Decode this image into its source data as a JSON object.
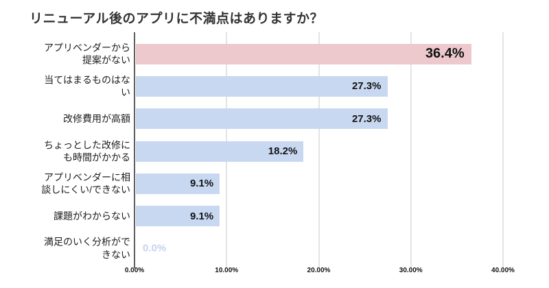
{
  "chart_data": {
    "type": "bar",
    "orientation": "horizontal",
    "title": "リニューアル後のアプリに不満点はありますか？",
    "categories": [
      "アプリベンダーから\n提案がない",
      "当てはまるものはな\nい",
      "改修費用が高額",
      "ちょっとした改修に\nも時間がかかる",
      "アプリベンダーに相\n談しにくい/できない",
      "課題がわからない",
      "満足のいく分析がで\nきない"
    ],
    "values": [
      36.4,
      27.3,
      27.3,
      18.2,
      9.1,
      9.1,
      0.0
    ],
    "value_labels": [
      "36.4%",
      "27.3%",
      "27.3%",
      "18.2%",
      "9.1%",
      "9.1%",
      "0.0%"
    ],
    "highlight_index": 0,
    "xlabel": "",
    "ylabel": "",
    "xlim": [
      0,
      40
    ],
    "x_ticks": [
      "0.00%",
      "10.00%",
      "20.00%",
      "30.00%",
      "40.00%"
    ],
    "x_tick_values": [
      0,
      10,
      20,
      30,
      40
    ],
    "grid": true,
    "legend": "none",
    "colors": {
      "bar": "#c9d8f1",
      "highlight_bar": "#edc9ce",
      "value_text": "#121212",
      "zero_value_text": "#c4d3ef",
      "grid_line": "#e4e4e4",
      "axis_line": "#5f5f5f",
      "title_text": "#333333",
      "label_text": "#1c1c1c",
      "background": "#ffffff"
    }
  }
}
